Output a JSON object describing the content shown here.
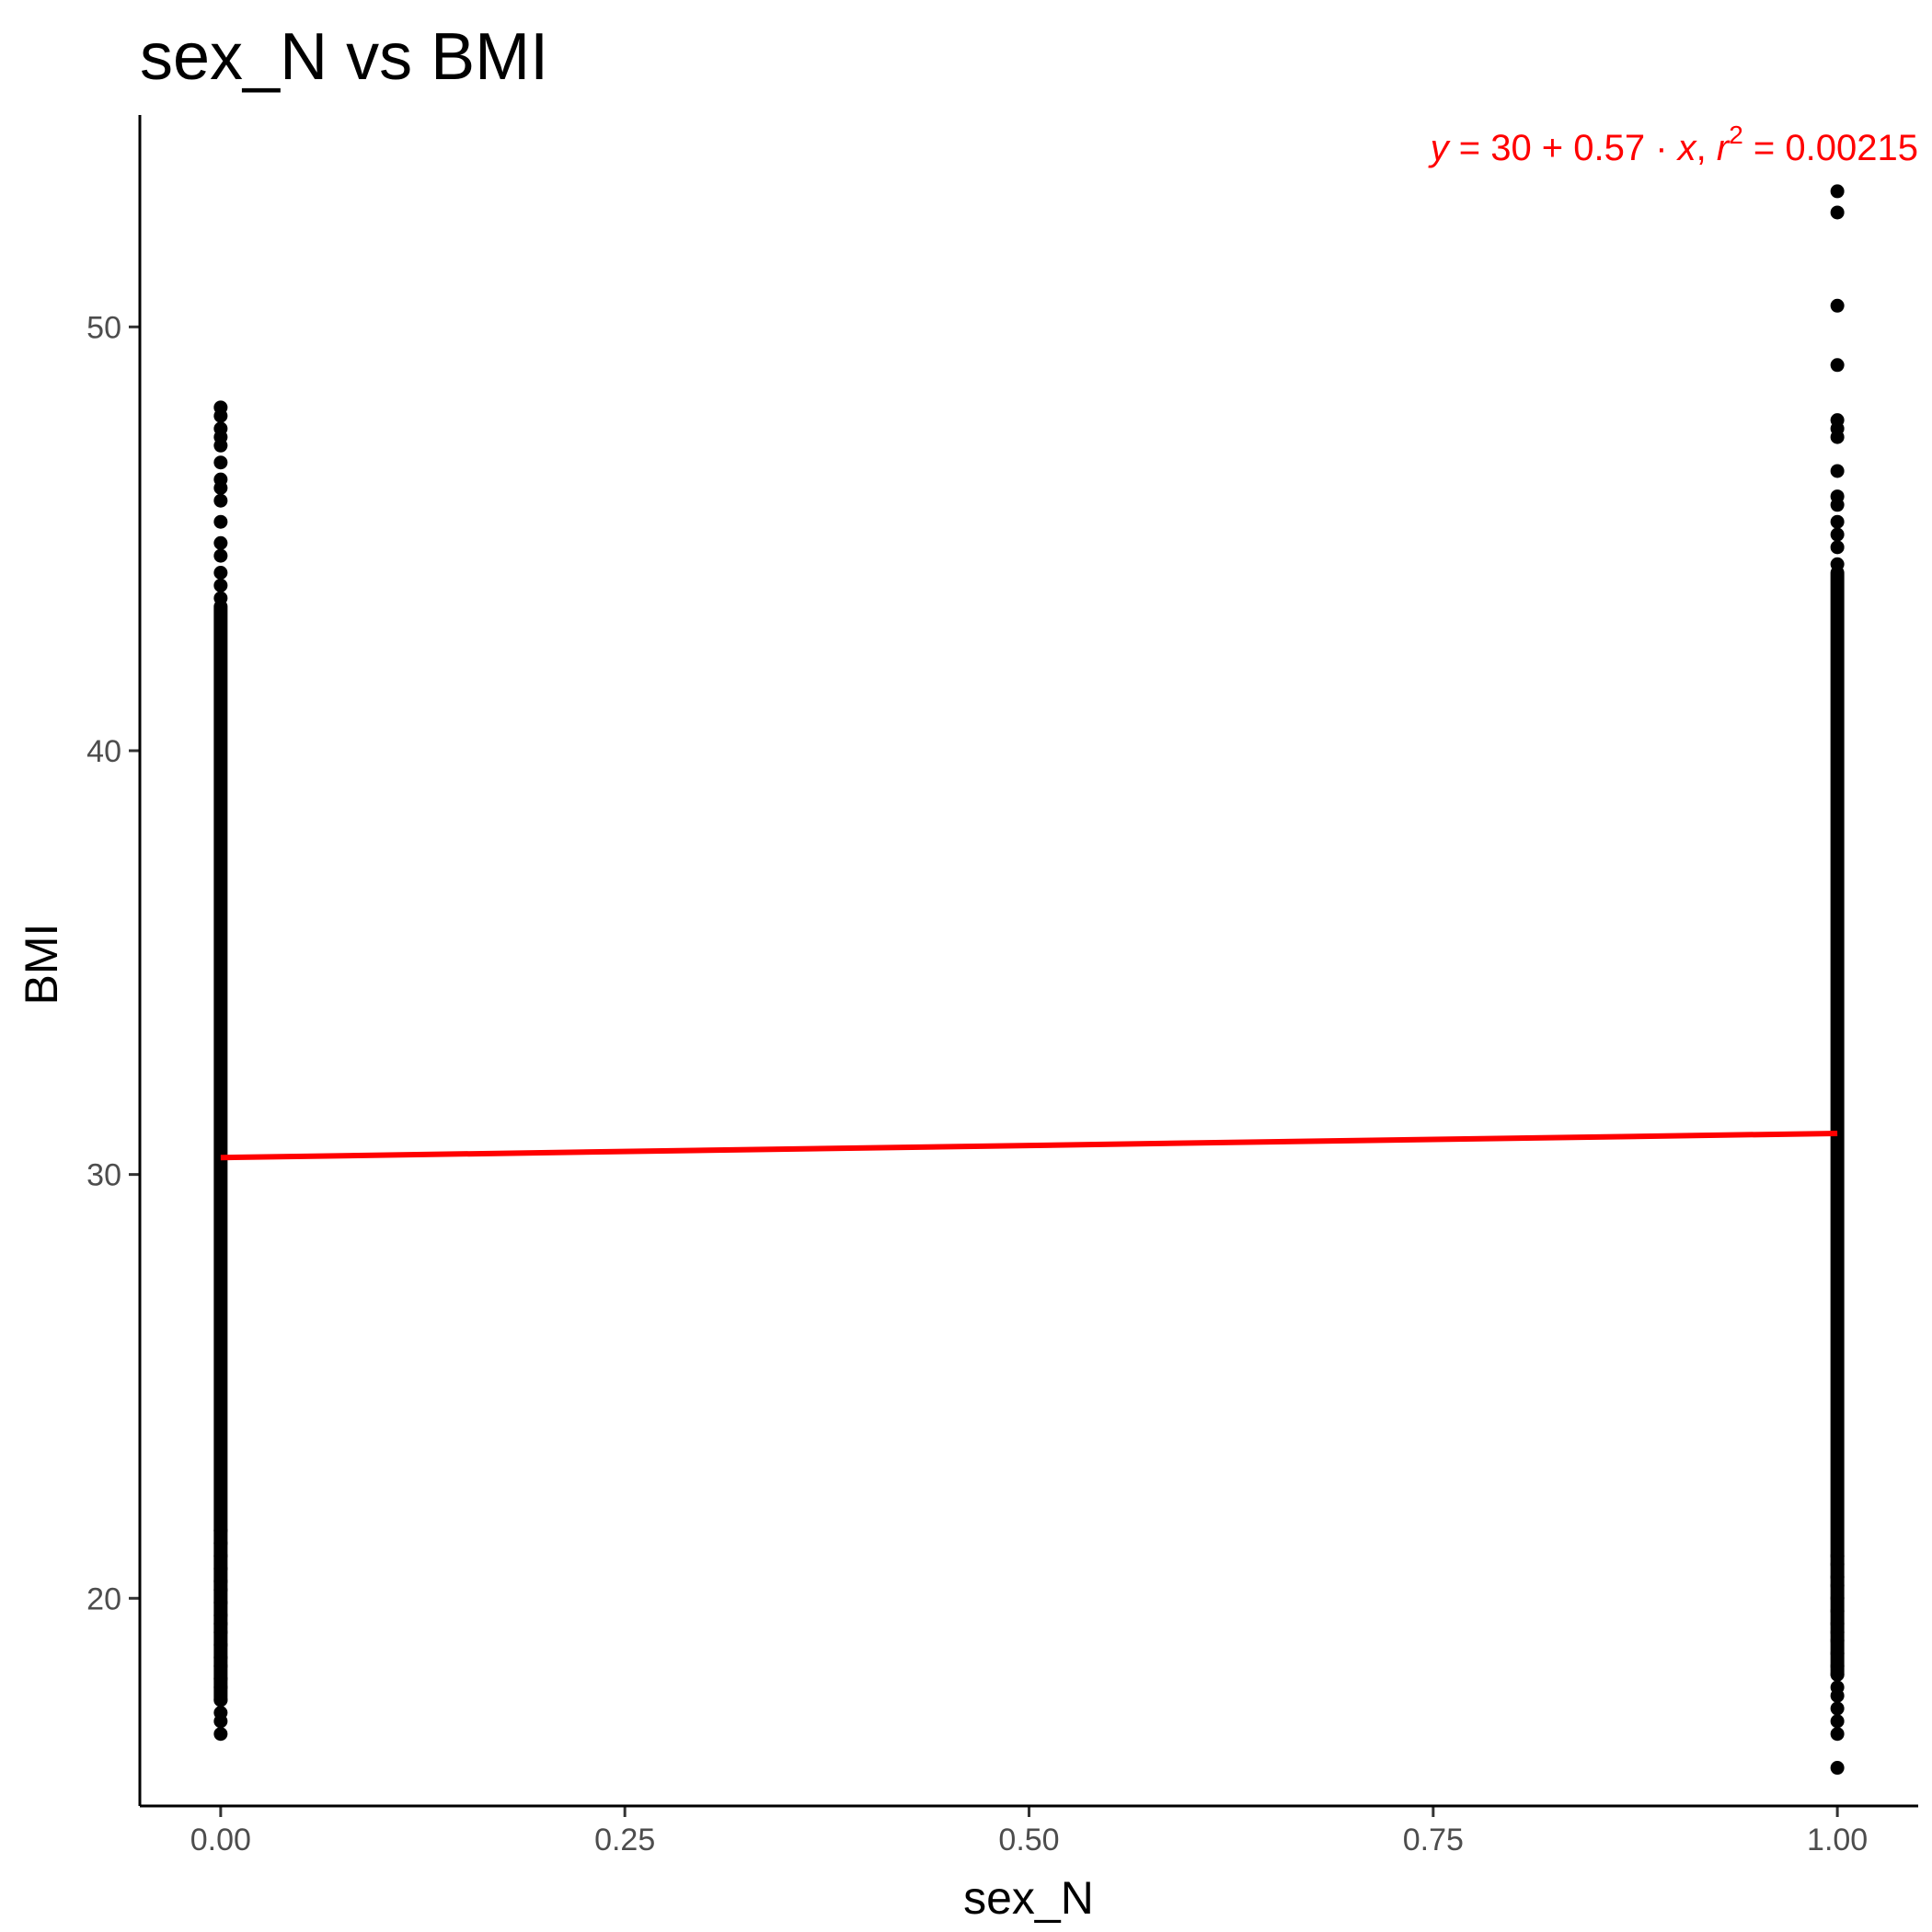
{
  "chart_data": {
    "type": "scatter",
    "title": "sex_N vs BMI",
    "xlabel": "sex_N",
    "ylabel": "BMI",
    "xlim": [
      -0.05,
      1.05
    ],
    "ylim": [
      15.1,
      55
    ],
    "xticks": [
      0.0,
      0.25,
      0.5,
      0.75,
      1.0
    ],
    "xtick_labels": [
      "0.00",
      "0.25",
      "0.50",
      "0.75",
      "1.00"
    ],
    "yticks": [
      20,
      30,
      40,
      50
    ],
    "ytick_labels": [
      "20",
      "30",
      "40",
      "50"
    ],
    "grid": false,
    "legend": "none",
    "series": [
      {
        "x_value": 0,
        "dense_range": [
          17.6,
          43.4
        ],
        "y_points": [
          16.8,
          17.1,
          17.3,
          17.6,
          17.9,
          18.1,
          18.4,
          18.6,
          18.9,
          19.2,
          19.4,
          19.6,
          19.9,
          20.2,
          20.4,
          20.7,
          21.0,
          21.3,
          21.6,
          43.6,
          43.9,
          44.2,
          44.6,
          44.9,
          45.4,
          45.9,
          46.2,
          46.4,
          46.8,
          47.2,
          47.4,
          47.6,
          47.9,
          48.1
        ]
      },
      {
        "x_value": 1,
        "dense_range": [
          18.2,
          44.2
        ],
        "y_points": [
          16.0,
          16.8,
          17.1,
          17.4,
          17.7,
          17.9,
          18.2,
          18.4,
          18.7,
          19.0,
          19.2,
          19.4,
          19.7,
          20.0,
          20.3,
          20.5,
          20.8,
          21.0,
          44.4,
          44.8,
          45.1,
          45.4,
          45.8,
          46.0,
          46.6,
          47.4,
          47.6,
          47.8,
          49.1,
          50.5,
          52.7,
          53.2
        ]
      }
    ],
    "regression": {
      "intercept": 30.4,
      "slope": 0.57,
      "x_range": [
        0,
        1
      ],
      "color": "#ff0000"
    },
    "point_color": "#000000",
    "annotation": {
      "y_label": "y",
      "eq_label": " = 30 + 0.57 · ",
      "x_label": "x",
      "sep_label": ",  ",
      "r_label": "r",
      "sup_label": "2",
      "value_label": " = 0.00215"
    }
  }
}
